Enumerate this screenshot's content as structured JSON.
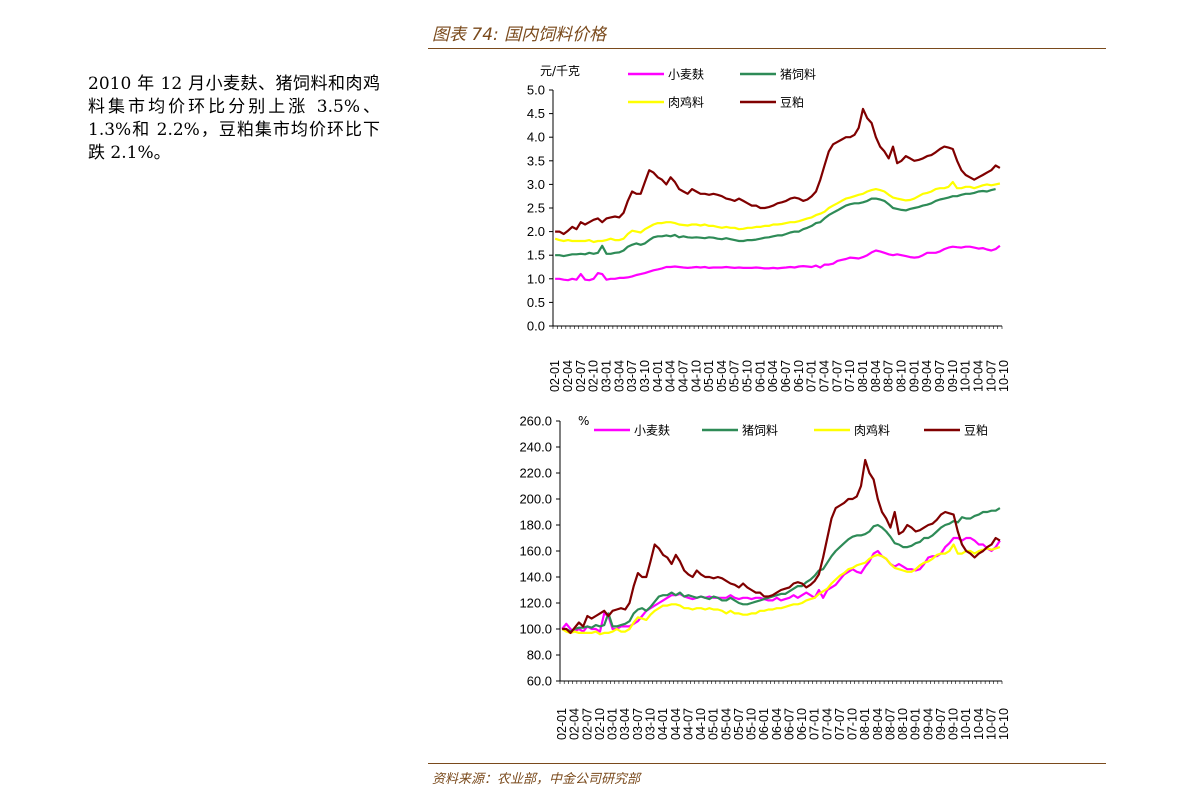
{
  "figure_title": "图表 74: 国内饲料价格",
  "commentary": "2010 年 12 月小麦麸、猪饲料和肉鸡料集市均价环比分别上涨 3.5%、1.3%和 2.2%，豆粕集市均价环比下跌 2.1%。",
  "source": "资料来源：农业部，中金公司研究部",
  "colors": {
    "wheat_bran": "#ff00ff",
    "pig_feed": "#2e8b57",
    "broiler_feed": "#ffff00",
    "soymeal": "#800000"
  },
  "chart_data": [
    {
      "type": "line",
      "unit": "元/千克",
      "ylim": [
        0,
        5.0
      ],
      "yticks": [
        "0.0",
        "0.5",
        "1.0",
        "1.5",
        "2.0",
        "2.5",
        "3.0",
        "3.5",
        "4.0",
        "4.5",
        "5.0"
      ],
      "xticks": [
        "02-01",
        "02-04",
        "02-07",
        "02-10",
        "03-01",
        "03-04",
        "03-07",
        "03-10",
        "04-01",
        "04-04",
        "04-07",
        "04-10",
        "05-01",
        "05-04",
        "05-07",
        "05-10",
        "06-01",
        "06-04",
        "06-07",
        "06-10",
        "07-01",
        "07-04",
        "07-07",
        "07-10",
        "08-01",
        "08-04",
        "08-07",
        "08-10",
        "09-01",
        "09-04",
        "09-07",
        "09-10",
        "10-01",
        "10-04",
        "10-07",
        "10-10"
      ],
      "legend": [
        "小麦麸",
        "猪饲料",
        "肉鸡料",
        "豆粕"
      ],
      "series": [
        {
          "name": "小麦麸",
          "values": [
            1.0,
            1.0,
            0.98,
            0.97,
            1.0,
            0.98,
            1.1,
            0.98,
            0.97,
            1.0,
            1.12,
            1.1,
            0.98,
            1.0,
            1.0,
            1.02,
            1.02,
            1.03,
            1.05,
            1.08,
            1.1,
            1.12,
            1.15,
            1.18,
            1.2,
            1.22,
            1.25,
            1.25,
            1.26,
            1.25,
            1.24,
            1.23,
            1.24,
            1.25,
            1.24,
            1.25,
            1.23,
            1.24,
            1.24,
            1.24,
            1.25,
            1.24,
            1.23,
            1.24,
            1.23,
            1.23,
            1.23,
            1.24,
            1.23,
            1.22,
            1.22,
            1.23,
            1.22,
            1.23,
            1.24,
            1.25,
            1.24,
            1.26,
            1.27,
            1.26,
            1.25,
            1.28,
            1.24,
            1.3,
            1.3,
            1.32,
            1.38,
            1.4,
            1.42,
            1.45,
            1.44,
            1.43,
            1.46,
            1.5,
            1.56,
            1.6,
            1.58,
            1.55,
            1.52,
            1.5,
            1.52,
            1.5,
            1.48,
            1.46,
            1.45,
            1.46,
            1.5,
            1.55,
            1.55,
            1.55,
            1.58,
            1.63,
            1.66,
            1.68,
            1.67,
            1.66,
            1.68,
            1.68,
            1.66,
            1.64,
            1.65,
            1.62,
            1.6,
            1.63,
            1.7
          ]
        },
        {
          "name": "猪饲料",
          "values": [
            1.5,
            1.5,
            1.48,
            1.5,
            1.52,
            1.52,
            1.53,
            1.52,
            1.55,
            1.53,
            1.55,
            1.7,
            1.53,
            1.53,
            1.55,
            1.56,
            1.6,
            1.68,
            1.72,
            1.75,
            1.72,
            1.75,
            1.82,
            1.88,
            1.9,
            1.9,
            1.92,
            1.9,
            1.93,
            1.88,
            1.9,
            1.88,
            1.87,
            1.88,
            1.87,
            1.86,
            1.88,
            1.87,
            1.85,
            1.84,
            1.86,
            1.84,
            1.82,
            1.8,
            1.8,
            1.82,
            1.82,
            1.83,
            1.85,
            1.87,
            1.88,
            1.9,
            1.92,
            1.92,
            1.95,
            1.98,
            2.0,
            2.0,
            2.05,
            2.08,
            2.12,
            2.18,
            2.2,
            2.28,
            2.35,
            2.4,
            2.45,
            2.5,
            2.55,
            2.58,
            2.6,
            2.6,
            2.62,
            2.65,
            2.7,
            2.7,
            2.68,
            2.65,
            2.58,
            2.5,
            2.48,
            2.46,
            2.45,
            2.48,
            2.5,
            2.52,
            2.55,
            2.57,
            2.6,
            2.65,
            2.68,
            2.7,
            2.72,
            2.75,
            2.75,
            2.78,
            2.8,
            2.8,
            2.82,
            2.85,
            2.86,
            2.85,
            2.88,
            2.9
          ]
        },
        {
          "name": "肉鸡料",
          "values": [
            1.85,
            1.82,
            1.8,
            1.82,
            1.8,
            1.8,
            1.8,
            1.8,
            1.82,
            1.78,
            1.8,
            1.8,
            1.82,
            1.85,
            1.82,
            1.82,
            1.85,
            1.95,
            2.02,
            2.0,
            1.98,
            2.05,
            2.1,
            2.15,
            2.18,
            2.18,
            2.2,
            2.2,
            2.18,
            2.15,
            2.14,
            2.13,
            2.15,
            2.15,
            2.13,
            2.15,
            2.12,
            2.12,
            2.1,
            2.08,
            2.1,
            2.08,
            2.08,
            2.05,
            2.06,
            2.08,
            2.08,
            2.1,
            2.1,
            2.12,
            2.12,
            2.15,
            2.15,
            2.16,
            2.18,
            2.2,
            2.2,
            2.22,
            2.25,
            2.28,
            2.3,
            2.35,
            2.38,
            2.42,
            2.5,
            2.55,
            2.6,
            2.65,
            2.7,
            2.72,
            2.75,
            2.78,
            2.8,
            2.85,
            2.88,
            2.9,
            2.88,
            2.85,
            2.78,
            2.72,
            2.7,
            2.68,
            2.66,
            2.67,
            2.7,
            2.75,
            2.8,
            2.82,
            2.85,
            2.9,
            2.92,
            2.92,
            2.95,
            3.05,
            2.92,
            2.92,
            2.95,
            2.95,
            2.92,
            2.95,
            2.98,
            3.0,
            2.98,
            3.0,
            3.02
          ]
        },
        {
          "name": "豆粕",
          "values": [
            2.0,
            2.0,
            1.95,
            2.02,
            2.1,
            2.05,
            2.2,
            2.15,
            2.2,
            2.25,
            2.28,
            2.2,
            2.28,
            2.3,
            2.32,
            2.3,
            2.4,
            2.65,
            2.85,
            2.8,
            2.8,
            3.05,
            3.3,
            3.25,
            3.15,
            3.1,
            3.0,
            3.15,
            3.05,
            2.9,
            2.85,
            2.8,
            2.9,
            2.85,
            2.8,
            2.8,
            2.78,
            2.8,
            2.78,
            2.75,
            2.7,
            2.68,
            2.65,
            2.7,
            2.65,
            2.6,
            2.55,
            2.55,
            2.5,
            2.5,
            2.52,
            2.55,
            2.6,
            2.62,
            2.65,
            2.7,
            2.72,
            2.7,
            2.65,
            2.68,
            2.75,
            2.85,
            3.1,
            3.4,
            3.7,
            3.85,
            3.9,
            3.95,
            4.0,
            4.0,
            4.05,
            4.2,
            4.6,
            4.4,
            4.3,
            4.0,
            3.8,
            3.7,
            3.55,
            3.8,
            3.45,
            3.5,
            3.6,
            3.55,
            3.5,
            3.52,
            3.55,
            3.6,
            3.62,
            3.68,
            3.75,
            3.8,
            3.78,
            3.75,
            3.5,
            3.3,
            3.2,
            3.15,
            3.1,
            3.15,
            3.2,
            3.25,
            3.3,
            3.4,
            3.35
          ]
        }
      ]
    },
    {
      "type": "line",
      "unit": "%",
      "ylim": [
        60,
        260
      ],
      "yticks": [
        "60.0",
        "80.0",
        "100.0",
        "120.0",
        "140.0",
        "160.0",
        "180.0",
        "200.0",
        "220.0",
        "240.0",
        "260.0"
      ],
      "xticks": [
        "02-01",
        "02-04",
        "02-07",
        "02-10",
        "03-01",
        "03-04",
        "03-07",
        "03-10",
        "04-01",
        "04-04",
        "04-07",
        "04-10",
        "05-01",
        "05-04",
        "05-07",
        "05-10",
        "06-01",
        "06-04",
        "06-07",
        "06-10",
        "07-01",
        "07-04",
        "07-07",
        "07-10",
        "08-01",
        "08-04",
        "08-07",
        "08-10",
        "09-01",
        "09-04",
        "09-07",
        "09-10",
        "10-01",
        "10-04",
        "10-07",
        "10-10"
      ],
      "legend": [
        "小麦麸",
        "猪饲料",
        "肉鸡料",
        "豆粕"
      ],
      "series": [
        {
          "name": "小麦麸",
          "values": [
            100,
            104,
            100,
            98,
            100,
            98,
            102,
            100,
            100,
            98,
            112,
            110,
            100,
            100,
            102,
            102,
            102,
            104,
            106,
            110,
            114,
            116,
            118,
            120,
            122,
            124,
            126,
            126,
            127,
            125,
            124,
            123,
            124,
            125,
            124,
            125,
            124,
            124,
            124,
            124,
            126,
            124,
            123,
            124,
            124,
            123,
            124,
            124,
            123,
            122,
            122,
            124,
            122,
            123,
            124,
            126,
            124,
            126,
            128,
            126,
            124,
            130,
            124,
            130,
            132,
            134,
            138,
            142,
            144,
            146,
            144,
            143,
            148,
            152,
            158,
            160,
            156,
            154,
            150,
            148,
            150,
            148,
            146,
            146,
            145,
            146,
            150,
            155,
            156,
            156,
            158,
            163,
            166,
            170,
            170,
            168,
            170,
            170,
            168,
            165,
            165,
            162,
            160,
            163,
            168
          ]
        },
        {
          "name": "猪饲料",
          "values": [
            100,
            100,
            98,
            100,
            101,
            101,
            102,
            101,
            103,
            102,
            103,
            112,
            102,
            102,
            103,
            104,
            106,
            112,
            115,
            116,
            114,
            117,
            121,
            125,
            126,
            126,
            128,
            126,
            128,
            125,
            126,
            125,
            124,
            125,
            124,
            123,
            125,
            124,
            122,
            122,
            124,
            122,
            120,
            119,
            119,
            120,
            121,
            122,
            123,
            124,
            125,
            126,
            127,
            127,
            129,
            131,
            133,
            133,
            136,
            138,
            141,
            145,
            146,
            151,
            156,
            160,
            163,
            166,
            169,
            171,
            172,
            172,
            173,
            175,
            179,
            180,
            178,
            175,
            171,
            166,
            165,
            163,
            163,
            164,
            166,
            167,
            170,
            170,
            172,
            175,
            178,
            180,
            181,
            183,
            182,
            186,
            185,
            185,
            187,
            188,
            190,
            190,
            191,
            191,
            193
          ]
        },
        {
          "name": "肉鸡料",
          "values": [
            100,
            98,
            97,
            98,
            97,
            97,
            97,
            97,
            98,
            96,
            97,
            97,
            98,
            100,
            98,
            98,
            100,
            105,
            109,
            108,
            107,
            111,
            114,
            116,
            118,
            118,
            119,
            119,
            118,
            116,
            116,
            115,
            116,
            116,
            115,
            116,
            115,
            115,
            114,
            112,
            114,
            112,
            112,
            111,
            111,
            112,
            112,
            114,
            114,
            115,
            115,
            116,
            116,
            117,
            118,
            119,
            119,
            120,
            122,
            123,
            124,
            127,
            129,
            131,
            135,
            138,
            141,
            143,
            146,
            147,
            149,
            150,
            151,
            154,
            156,
            157,
            156,
            154,
            150,
            147,
            146,
            145,
            144,
            144,
            146,
            149,
            151,
            152,
            154,
            157,
            158,
            158,
            160,
            165,
            158,
            158,
            160,
            160,
            158,
            160,
            161,
            162,
            161,
            162,
            163
          ]
        },
        {
          "name": "豆粕",
          "values": [
            100,
            100,
            97,
            101,
            105,
            102,
            110,
            108,
            110,
            112,
            114,
            110,
            114,
            115,
            116,
            115,
            120,
            133,
            143,
            140,
            140,
            152,
            165,
            162,
            157,
            155,
            150,
            157,
            152,
            145,
            142,
            140,
            145,
            142,
            140,
            140,
            139,
            140,
            139,
            137,
            135,
            134,
            132,
            135,
            132,
            130,
            128,
            128,
            125,
            125,
            126,
            128,
            130,
            131,
            132,
            135,
            136,
            135,
            132,
            134,
            137,
            142,
            155,
            170,
            185,
            193,
            195,
            197,
            200,
            200,
            202,
            210,
            230,
            220,
            215,
            200,
            190,
            185,
            178,
            190,
            173,
            175,
            180,
            178,
            175,
            176,
            178,
            180,
            181,
            184,
            188,
            190,
            189,
            188,
            175,
            165,
            160,
            158,
            155,
            158,
            160,
            163,
            165,
            170,
            168
          ]
        }
      ]
    }
  ]
}
